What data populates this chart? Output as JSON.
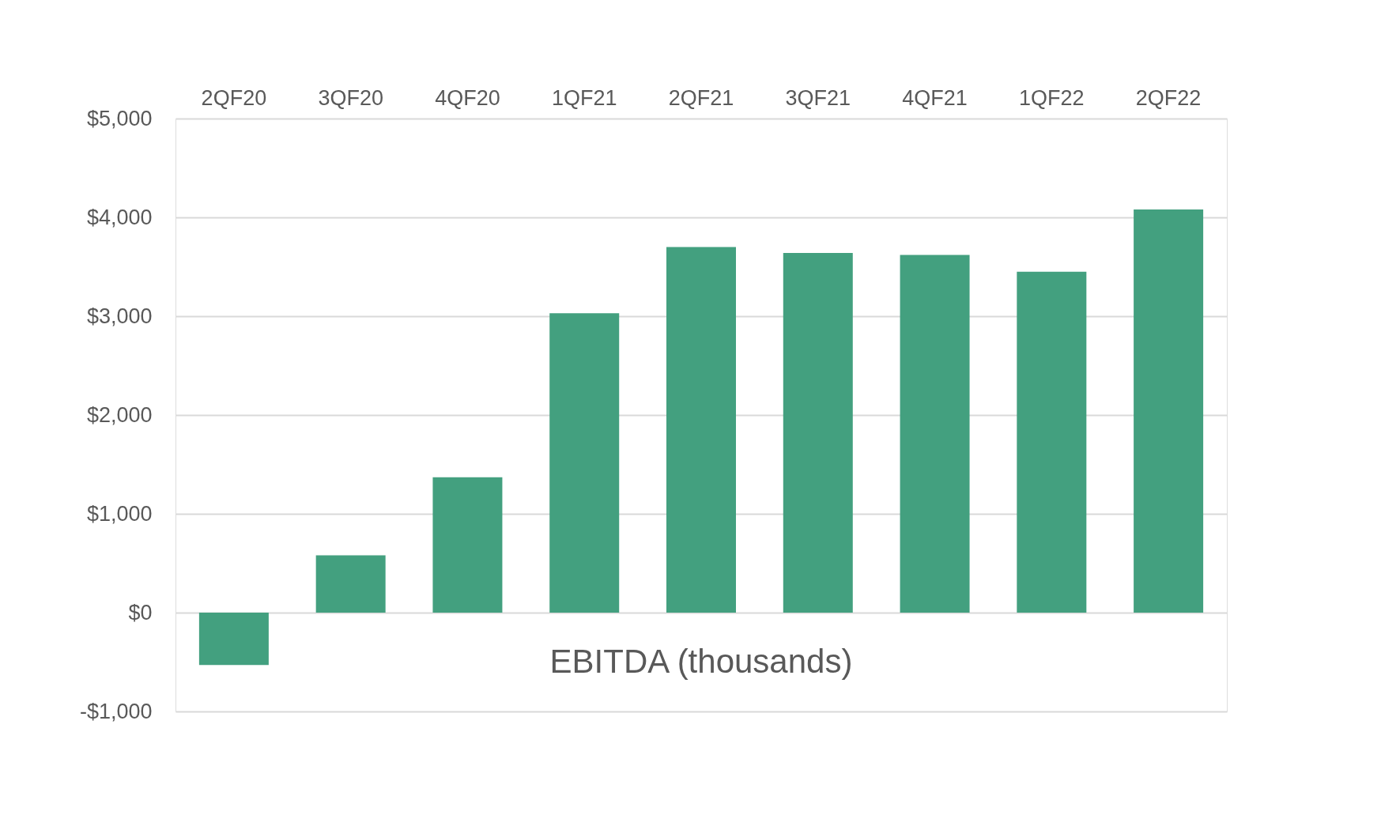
{
  "chart_data": {
    "type": "bar",
    "title": "EBITDA (thousands)",
    "categories": [
      "2QF20",
      "3QF20",
      "4QF20",
      "1QF21",
      "2QF21",
      "3QF21",
      "4QF21",
      "1QF22",
      "2QF22"
    ],
    "values": [
      -530,
      580,
      1370,
      3030,
      3700,
      3640,
      3620,
      3450,
      4080
    ],
    "color": "#43a07f",
    "ylim": [
      -1000,
      5000
    ],
    "yticks": [
      {
        "value": -1000,
        "label": "-$1,000"
      },
      {
        "value": 0,
        "label": "$0"
      },
      {
        "value": 1000,
        "label": "$1,000"
      },
      {
        "value": 2000,
        "label": "$2,000"
      },
      {
        "value": 3000,
        "label": "$3,000"
      },
      {
        "value": 4000,
        "label": "$4,000"
      },
      {
        "value": 5000,
        "label": "$5,000"
      }
    ],
    "grid": "y",
    "legend": false
  }
}
